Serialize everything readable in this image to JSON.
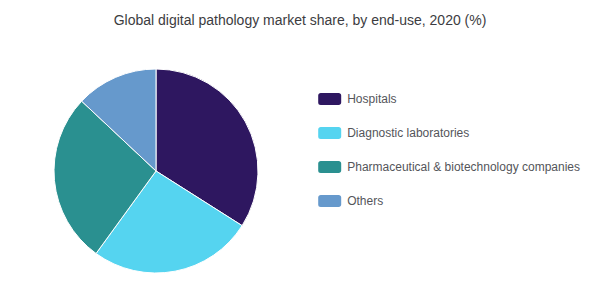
{
  "chart_data": {
    "type": "pie",
    "title": "Global digital pathology market share, by end-use, 2020 (%)",
    "categories": [
      "Hospitals",
      "Diagnostic laboratories",
      "Pharmaceutical & biotechnology companies",
      "Others"
    ],
    "values": [
      34,
      26,
      27,
      13
    ],
    "colors": [
      "#2e1760",
      "#55d4f0",
      "#2a9090",
      "#6699cc"
    ],
    "legend": "right"
  }
}
